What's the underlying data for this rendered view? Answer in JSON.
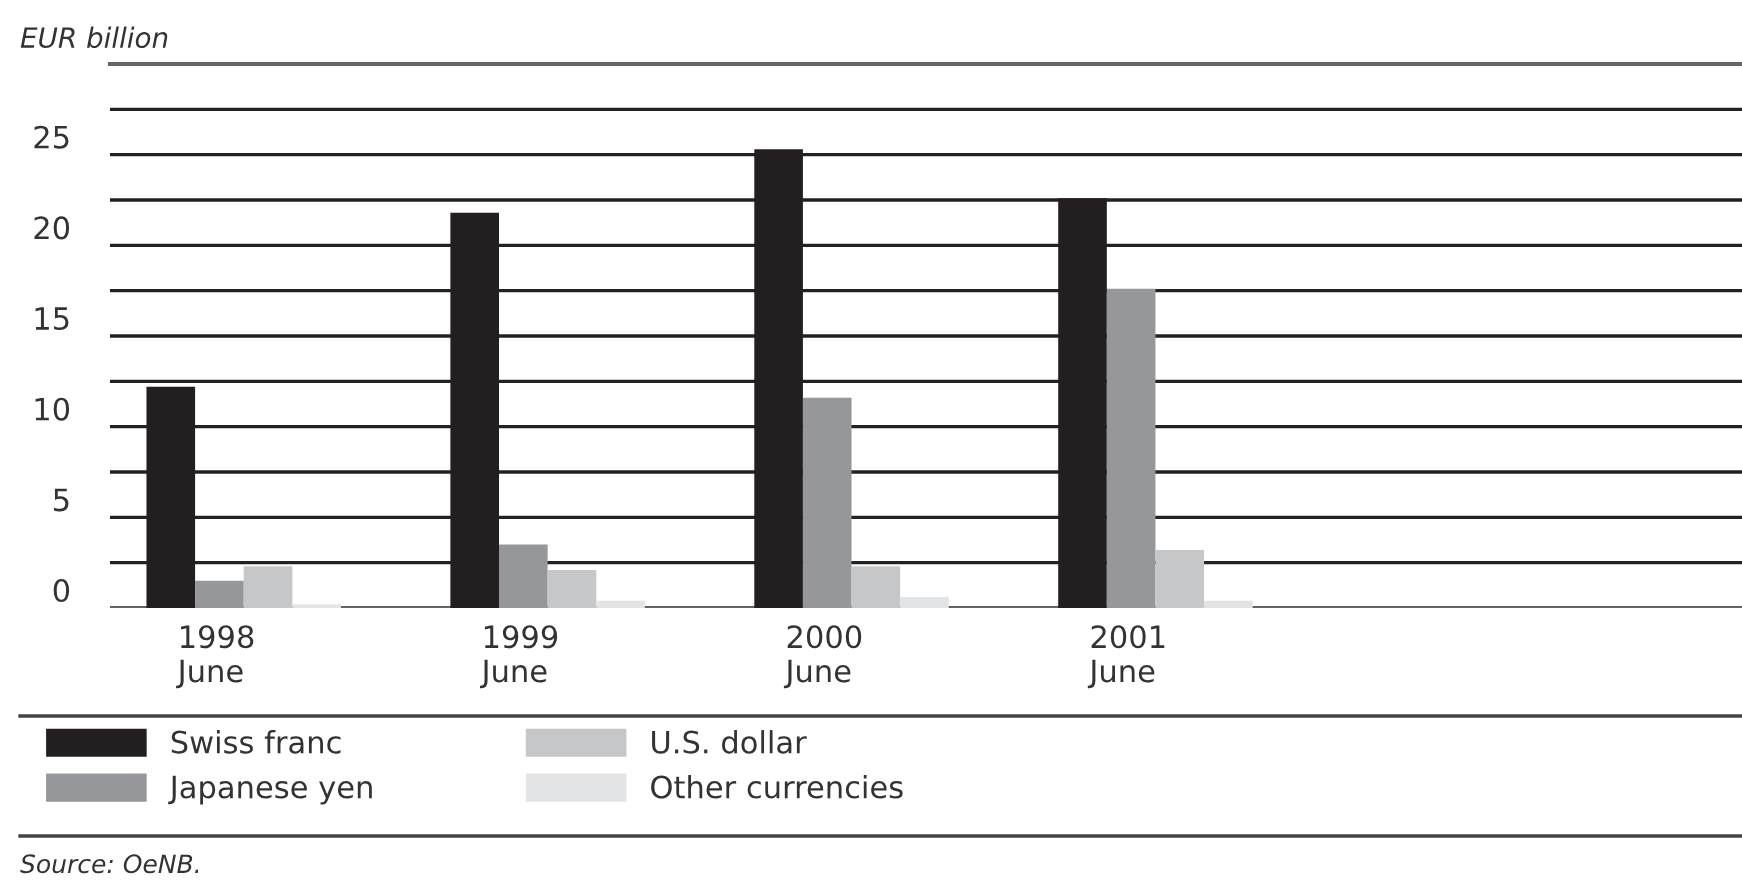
{
  "chart_data": {
    "type": "bar",
    "ylabel": "EUR billion",
    "categories": [
      "1998\nJune",
      "1999\nJune",
      "2000\nJune",
      "2001\nJune"
    ],
    "series": [
      {
        "name": "Swiss franc",
        "color": "#231f20",
        "values": [
          12.2,
          21.8,
          25.3,
          22.6
        ]
      },
      {
        "name": "Japanese yen",
        "color": "#96979b",
        "values": [
          1.5,
          3.5,
          11.6,
          17.6
        ]
      },
      {
        "name": "U.S. dollar",
        "color": "#c6c7c9",
        "values": [
          2.3,
          2.1,
          2.3,
          3.2
        ]
      },
      {
        "name": "Other currencies",
        "color": "#e3e4e5",
        "values": [
          0.2,
          0.4,
          0.6,
          0.4
        ]
      }
    ],
    "ylim": [
      0,
      30
    ],
    "yticks": [
      0,
      {
        "value": 2.5,
        "label": null
      },
      5,
      {
        "value": 7.5,
        "label": null
      },
      10,
      {
        "value": 12.5,
        "label": null
      },
      15,
      {
        "value": 17.5,
        "label": null
      },
      20,
      {
        "value": 22.5,
        "label": null
      },
      25,
      {
        "value": 27.5,
        "label": null
      }
    ],
    "grid": "y",
    "legend": "bottom",
    "annotations": [
      "Source: OeNB."
    ]
  }
}
